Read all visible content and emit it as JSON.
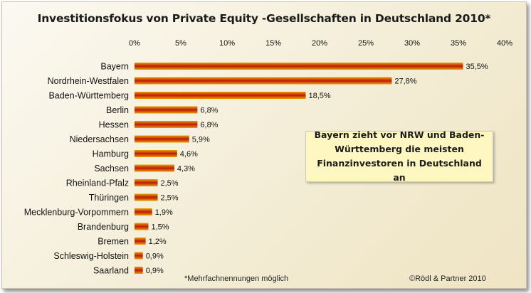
{
  "chart_data": {
    "type": "bar",
    "orientation": "horizontal",
    "title": "Investitionsfokus von Private Equity -Gesellschaften in Deutschland 2010*",
    "categories": [
      "Bayern",
      "Nordrhein-Westfalen",
      "Baden-Württemberg",
      "Berlin",
      "Hessen",
      "Niedersachsen",
      "Hamburg",
      "Sachsen",
      "Rheinland-Pfalz",
      "Thüringen",
      "Mecklenburg-Vorpommern",
      "Brandenburg",
      "Bremen",
      "Schleswig-Holstein",
      "Saarland"
    ],
    "values": [
      35.5,
      27.8,
      18.5,
      6.8,
      6.8,
      5.9,
      4.6,
      4.3,
      2.5,
      2.5,
      1.9,
      1.5,
      1.2,
      0.9,
      0.9
    ],
    "value_labels": [
      "35,5%",
      "27,8%",
      "18,5%",
      "6,8%",
      "6,8%",
      "5,9%",
      "4,6%",
      "4,3%",
      "2,5%",
      "2,5%",
      "1,9%",
      "1,5%",
      "1,2%",
      "0,9%",
      "0,9%"
    ],
    "xlim": [
      0,
      40
    ],
    "xticks": [
      0,
      5,
      10,
      15,
      20,
      25,
      30,
      35,
      40
    ],
    "xtick_labels": [
      "0%",
      "5%",
      "10%",
      "15%",
      "20%",
      "25%",
      "30%",
      "35%",
      "40%"
    ],
    "x_axis_position": "top",
    "grid": false,
    "legend": "none",
    "bar_color_outer": "#e8a000",
    "bar_color_inner": "#c0180e",
    "annotation": "Bayern zieht vor NRW und Baden-Württemberg die meisten Finanzinvestoren in Deutschland an",
    "footnote": "*Mehrfachnennungen möglich",
    "source": "©Rödl & Partner 2010"
  }
}
